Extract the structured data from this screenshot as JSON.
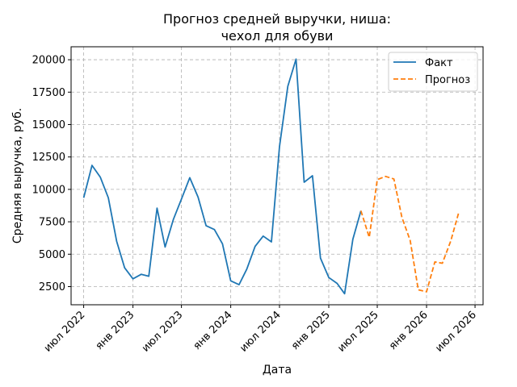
{
  "chart_data": {
    "type": "line",
    "title_line1": "Прогноз средней выручки, ниша:",
    "title_line2": "чехол для обуви",
    "xlabel": "Дата",
    "ylabel": "Средняя выручка, руб.",
    "x_ticks": [
      "2022-07-01",
      "2023-01-01",
      "2023-07-01",
      "2024-01-01",
      "2024-07-01",
      "2025-01-01",
      "2025-07-01",
      "2026-01-01",
      "2026-07-01"
    ],
    "x_tick_labels": [
      "июл 2022",
      "янв 2023",
      "июл 2023",
      "янв 2024",
      "июл 2024",
      "янв 2025",
      "июл 2025",
      "янв 2026",
      "июл 2026"
    ],
    "y_ticks": [
      2500,
      5000,
      7500,
      10000,
      12500,
      15000,
      17500,
      20000
    ],
    "y_tick_labels": [
      "2500",
      "5000",
      "7500",
      "10000",
      "12500",
      "15000",
      "17500",
      "20000"
    ],
    "xlim": [
      "2022-05-15",
      "2026-07-31"
    ],
    "ylim": [
      1100,
      21000
    ],
    "grid": true,
    "legend_position": "top-right",
    "series": [
      {
        "name": "Факт",
        "color": "#1f77b4",
        "style": "solid",
        "x": [
          "2022-07-01",
          "2022-08-01",
          "2022-09-01",
          "2022-10-01",
          "2022-11-01",
          "2022-12-01",
          "2023-01-01",
          "2023-02-01",
          "2023-03-01",
          "2023-04-01",
          "2023-05-01",
          "2023-06-01",
          "2023-07-01",
          "2023-08-01",
          "2023-09-01",
          "2023-10-01",
          "2023-11-01",
          "2023-12-01",
          "2024-01-01",
          "2024-02-01",
          "2024-03-01",
          "2024-04-01",
          "2024-05-01",
          "2024-06-01",
          "2024-07-01",
          "2024-08-01",
          "2024-09-01",
          "2024-10-01",
          "2024-11-01",
          "2024-12-01",
          "2025-01-01",
          "2025-02-01",
          "2025-03-01",
          "2025-04-01",
          "2025-05-01"
        ],
        "y": [
          9350,
          11850,
          10950,
          9350,
          6000,
          3950,
          3100,
          3450,
          3300,
          8550,
          5550,
          7700,
          9250,
          10900,
          9400,
          7200,
          6900,
          5800,
          2950,
          2650,
          3850,
          5600,
          6400,
          5950,
          13300,
          17950,
          20050,
          10550,
          11050,
          4700,
          3200,
          2750,
          1950,
          6150,
          8350
        ]
      },
      {
        "name": "Прогноз",
        "color": "#ff7f0e",
        "style": "dashed",
        "x": [
          "2025-05-01",
          "2025-06-01",
          "2025-07-01",
          "2025-08-01",
          "2025-09-01",
          "2025-10-01",
          "2025-11-01",
          "2025-12-01",
          "2026-01-01",
          "2026-02-01",
          "2026-03-01",
          "2026-04-01",
          "2026-05-01"
        ],
        "y": [
          8350,
          6300,
          10750,
          11000,
          10800,
          7850,
          6050,
          2250,
          2100,
          4400,
          4300,
          6000,
          8200
        ]
      }
    ]
  }
}
